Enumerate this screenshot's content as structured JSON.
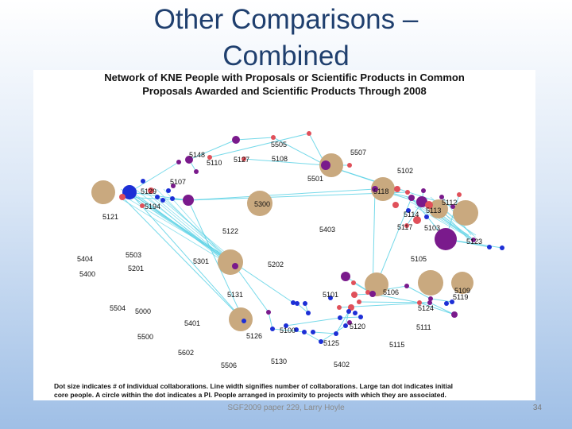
{
  "slide": {
    "title_line1": "Other Comparisons –",
    "title_line2": "Combined",
    "footer": "SGF2009 paper 229, Larry Hoyle",
    "page_number": "34"
  },
  "figure": {
    "title_line1": "Network of KNE People with Proposals or Scientific Products in Common",
    "title_line2": "Proposals Awarded and Scientific Products Through 2008",
    "note_line1": "Dot size indicates # of individual collaborations. Line width signifies number of collaborations. Large tan dot indicates initial",
    "note_line2": "core people. A circle within the dot indicates a PI. People arranged in proximity to projects with which they are associated."
  },
  "colors": {
    "edge": "#5fd3e6",
    "tan": "#c9a97f",
    "purple": "#7a1a8c",
    "blue": "#1d2fd6",
    "red": "#e0505a"
  },
  "node_labels": [
    "5505",
    "5507",
    "5148",
    "5110",
    "5127",
    "5108",
    "5102",
    "5501",
    "5107",
    "5129",
    "5118",
    "5112",
    "5194",
    "5300",
    "5113",
    "5114",
    "5121",
    "5122",
    "5403",
    "5117",
    "5103",
    "5123",
    "5404",
    "5503",
    "5301",
    "5202",
    "5105",
    "5400",
    "5201",
    "5131",
    "5101",
    "5106",
    "5109",
    "5119",
    "5504",
    "5000",
    "5124",
    "5401",
    "5100",
    "5120",
    "5111",
    "5500",
    "5126",
    "5125",
    "5115",
    "5602",
    "5506",
    "5130",
    "5402"
  ]
}
